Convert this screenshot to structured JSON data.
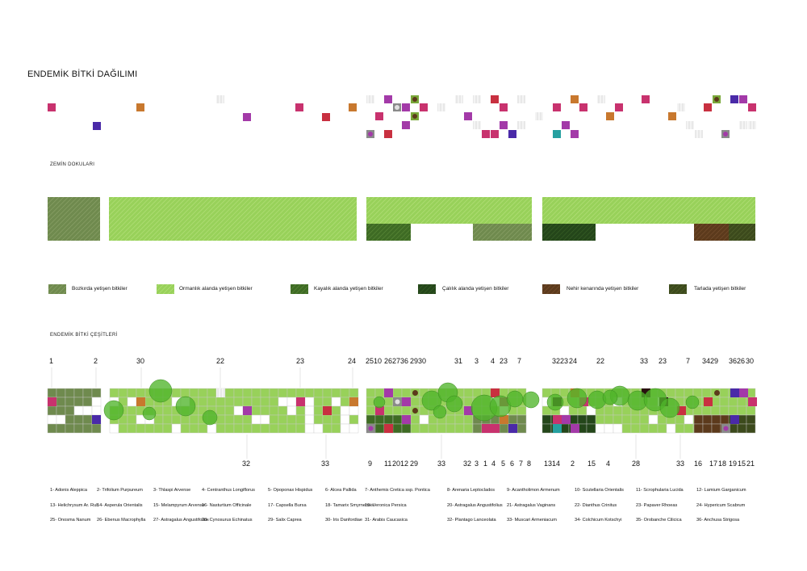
{
  "title": "ENDEMİK BİTKİ DAĞILIMI",
  "section_textures": "ZEMİN DOKULARI",
  "section_varieties": "ENDEMİK BİTKİ ÇEŞİTLERİ",
  "colors": {
    "bozkir": "#6f8a4e",
    "ormanlik": "#98d15a",
    "kayalik": "#3e6b24",
    "calilik": "#24461a",
    "nehir": "#5c3a1c",
    "tarla": "#3c4a1c",
    "pink": "#c8326e",
    "purple": "#a33aa8",
    "blue": "#4a2aa8",
    "orange": "#c8782e",
    "red": "#c83040",
    "teal": "#26a0a0",
    "canopy": "#4fb52a"
  },
  "legend": [
    {
      "label": "Bozkırda yetişen bitkiler",
      "swatch": "bozkir"
    },
    {
      "label": "Ormanlık alanda yetişen bitkiler",
      "swatch": "ormanlik"
    },
    {
      "label": "Kayalık alanda yetişen bitkiler",
      "swatch": "kayalik"
    },
    {
      "label": "Çalılık alanda yetişen bitkiler",
      "swatch": "calilik"
    },
    {
      "label": "Nehir kenarında yetişen bitkiler",
      "swatch": "nehir"
    },
    {
      "label": "Tarlada yetişen bitkiler",
      "swatch": "tarla"
    }
  ],
  "top_numbers": [
    "1",
    "2",
    "30",
    "22",
    "23",
    "24",
    "2510",
    "262736",
    "2930",
    "31",
    "3",
    "4",
    "23",
    "7",
    "3223",
    "24",
    "22",
    "33",
    "23",
    "7",
    "3429",
    "3626",
    "30"
  ],
  "bottom_numbers": [
    "32",
    "33",
    "9",
    "11",
    "2012",
    "29",
    "33",
    "32",
    "3",
    "1",
    "4",
    "5",
    "6",
    "7",
    "8",
    "1314",
    "2",
    "15",
    "4",
    "28",
    "33",
    "16",
    "17",
    "18",
    "19",
    "15",
    "21"
  ],
  "species": [
    [
      "1- Adonis Aleppica",
      "2- Trifolium Purpureum",
      "3- Thlaspi Arvense",
      "4- Centranthus Longiflorus",
      "5- Opoponax Hispidus",
      "6- Alcea Pallida",
      "7- Anthemis Cretica ssp. Pontica",
      "8- Arenaria Leptoclados",
      "9- Acantholimon Armenum",
      "10- Scutellaria Orientalis",
      "11- Scrophularia Lucida",
      "12- Lamium Garganicum"
    ],
    [
      "13- Helichrysum Ar. Rub",
      "14- Asperula Orientalis",
      "15- Melampyrum Arvense",
      "16- Nasturtium Officinale",
      "17- Capsella Bursa",
      "18- Tamarix Smyrnensis",
      "19- Veronica Persica",
      "20- Astragalus Angustifolius",
      "21- Astragalus Vaginans",
      "22- Dianthus Crinitus",
      "23- Papaver Rhoeas",
      "24- Hypericum Scabrum"
    ],
    [
      "25- Onosma Nanum",
      "26- Ebenus Macrophylla",
      "27- Astragalus Angustifolius",
      "28- Cynosurus Echinatus",
      "29- Salix Caprea",
      "30- Iris Danfordiae",
      "31- Arabis Caucasica",
      "32- Plantago Lanceolata",
      "33- Muscari Armeniacum",
      "34- Colchicum Kotschyi",
      "35- Orobanche Cilicica",
      "36- Anchusa Strigosa"
    ]
  ]
}
